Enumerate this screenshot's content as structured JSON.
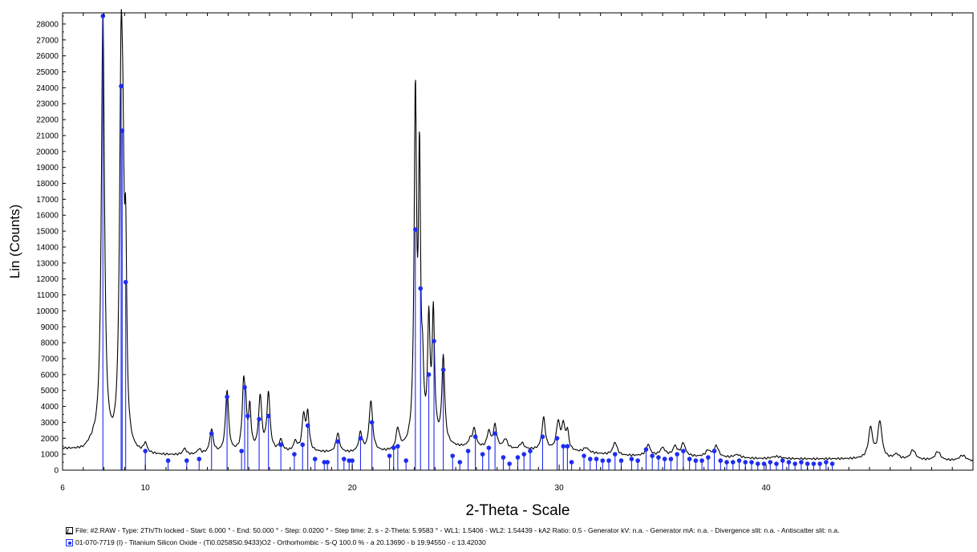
{
  "chart_data": {
    "type": "line",
    "xlabel": "2-Theta - Scale",
    "ylabel": "Lin (Counts)",
    "xlim": [
      6,
      50
    ],
    "ylim": [
      0,
      28700
    ],
    "x_ticks": [
      6,
      10,
      20,
      30,
      40
    ],
    "y_ticks": [
      0,
      1000,
      2000,
      3000,
      4000,
      5000,
      6000,
      7000,
      8000,
      9000,
      10000,
      11000,
      12000,
      13000,
      14000,
      15000,
      16000,
      17000,
      18000,
      19000,
      20000,
      21000,
      22000,
      23000,
      24000,
      25000,
      26000,
      27000,
      28000
    ],
    "grid": false,
    "series": [
      {
        "kind": "pattern",
        "color": "#000000",
        "baseline": [
          [
            6,
            1300
          ],
          [
            7,
            1200
          ],
          [
            7.5,
            1600
          ],
          [
            8.5,
            1000
          ],
          [
            10,
            900
          ],
          [
            12,
            900
          ],
          [
            15,
            1100
          ],
          [
            18,
            1100
          ],
          [
            20,
            1050
          ],
          [
            22,
            1100
          ],
          [
            24,
            1600
          ],
          [
            25,
            1400
          ],
          [
            27,
            1300
          ],
          [
            30,
            1200
          ],
          [
            33,
            900
          ],
          [
            36,
            850
          ],
          [
            40,
            700
          ],
          [
            45,
            700
          ],
          [
            50,
            550
          ]
        ],
        "peaks": [
          [
            7.95,
            27200,
            0.09
          ],
          [
            8.83,
            22800,
            0.09
          ],
          [
            8.92,
            10000,
            0.07
          ],
          [
            9.05,
            10500,
            0.06
          ],
          [
            10.0,
            600,
            0.1
          ],
          [
            11.9,
            400,
            0.1
          ],
          [
            12.6,
            300,
            0.1
          ],
          [
            13.2,
            1500,
            0.1
          ],
          [
            13.95,
            3900,
            0.09
          ],
          [
            14.75,
            4000,
            0.08
          ],
          [
            14.85,
            2000,
            0.06
          ],
          [
            15.05,
            2600,
            0.07
          ],
          [
            15.55,
            3400,
            0.09
          ],
          [
            15.95,
            3600,
            0.09
          ],
          [
            16.55,
            700,
            0.1
          ],
          [
            17.25,
            600,
            0.1
          ],
          [
            17.65,
            2200,
            0.09
          ],
          [
            17.85,
            2300,
            0.08
          ],
          [
            19.3,
            1200,
            0.1
          ],
          [
            20.4,
            1200,
            0.1
          ],
          [
            20.9,
            3200,
            0.1
          ],
          [
            22.2,
            1300,
            0.1
          ],
          [
            23.05,
            21700,
            0.07
          ],
          [
            23.25,
            17000,
            0.06
          ],
          [
            23.4,
            3500,
            0.06
          ],
          [
            23.7,
            7300,
            0.07
          ],
          [
            23.92,
            7800,
            0.07
          ],
          [
            24.4,
            5400,
            0.08
          ],
          [
            25.7,
            400,
            0.12
          ],
          [
            25.9,
            1100,
            0.1
          ],
          [
            26.6,
            1000,
            0.1
          ],
          [
            26.9,
            1400,
            0.1
          ],
          [
            27.4,
            600,
            0.12
          ],
          [
            28.2,
            400,
            0.12
          ],
          [
            29.25,
            2000,
            0.1
          ],
          [
            29.95,
            1700,
            0.1
          ],
          [
            30.2,
            1500,
            0.1
          ],
          [
            30.4,
            1100,
            0.08
          ],
          [
            31.3,
            300,
            0.15
          ],
          [
            32.7,
            800,
            0.12
          ],
          [
            34.3,
            700,
            0.12
          ],
          [
            35.0,
            500,
            0.15
          ],
          [
            35.6,
            600,
            0.12
          ],
          [
            36.0,
            800,
            0.12
          ],
          [
            37.2,
            400,
            0.15
          ],
          [
            37.6,
            700,
            0.12
          ],
          [
            38.6,
            200,
            0.2
          ],
          [
            40.5,
            150,
            0.3
          ],
          [
            45.05,
            1900,
            0.12
          ],
          [
            45.5,
            2300,
            0.12
          ],
          [
            46.3,
            300,
            0.15
          ],
          [
            47.1,
            600,
            0.15
          ],
          [
            48.3,
            550,
            0.15
          ],
          [
            49.5,
            350,
            0.2
          ]
        ]
      },
      {
        "kind": "sticks",
        "color": "#1e2cf0",
        "points": [
          [
            7.95,
            28500
          ],
          [
            8.83,
            24100
          ],
          [
            8.88,
            21300
          ],
          [
            9.05,
            11800
          ],
          [
            10.0,
            1200
          ],
          [
            11.1,
            600
          ],
          [
            12.0,
            600
          ],
          [
            12.6,
            700
          ],
          [
            13.2,
            2300
          ],
          [
            13.95,
            4600
          ],
          [
            14.65,
            1200
          ],
          [
            14.8,
            5200
          ],
          [
            14.95,
            3400
          ],
          [
            15.5,
            3200
          ],
          [
            15.95,
            3400
          ],
          [
            16.55,
            1600
          ],
          [
            17.2,
            1000
          ],
          [
            17.6,
            1600
          ],
          [
            17.85,
            2800
          ],
          [
            18.2,
            700
          ],
          [
            18.65,
            500
          ],
          [
            18.8,
            500
          ],
          [
            19.3,
            1800
          ],
          [
            19.6,
            700
          ],
          [
            19.85,
            600
          ],
          [
            20.0,
            600
          ],
          [
            20.4,
            2000
          ],
          [
            20.95,
            3000
          ],
          [
            21.8,
            900
          ],
          [
            22.0,
            1400
          ],
          [
            22.2,
            1500
          ],
          [
            22.6,
            600
          ],
          [
            23.05,
            15100
          ],
          [
            23.3,
            11400
          ],
          [
            23.7,
            6000
          ],
          [
            23.95,
            8100
          ],
          [
            24.4,
            6300
          ],
          [
            24.85,
            900
          ],
          [
            25.2,
            500
          ],
          [
            25.6,
            1200
          ],
          [
            25.95,
            2100
          ],
          [
            26.3,
            1000
          ],
          [
            26.6,
            1400
          ],
          [
            26.9,
            2300
          ],
          [
            27.3,
            800
          ],
          [
            27.6,
            400
          ],
          [
            28.0,
            800
          ],
          [
            28.3,
            1000
          ],
          [
            28.6,
            1200
          ],
          [
            29.2,
            2100
          ],
          [
            29.9,
            2000
          ],
          [
            30.2,
            1500
          ],
          [
            30.4,
            1500
          ],
          [
            30.6,
            500
          ],
          [
            31.2,
            900
          ],
          [
            31.5,
            700
          ],
          [
            31.8,
            700
          ],
          [
            32.1,
            600
          ],
          [
            32.4,
            600
          ],
          [
            32.7,
            1000
          ],
          [
            33.0,
            600
          ],
          [
            33.5,
            700
          ],
          [
            33.8,
            600
          ],
          [
            34.2,
            1300
          ],
          [
            34.5,
            900
          ],
          [
            34.8,
            800
          ],
          [
            35.1,
            700
          ],
          [
            35.4,
            700
          ],
          [
            35.7,
            1000
          ],
          [
            36.0,
            1200
          ],
          [
            36.3,
            700
          ],
          [
            36.6,
            600
          ],
          [
            36.9,
            600
          ],
          [
            37.2,
            800
          ],
          [
            37.5,
            1200
          ],
          [
            37.8,
            600
          ],
          [
            38.1,
            500
          ],
          [
            38.4,
            500
          ],
          [
            38.7,
            600
          ],
          [
            39.0,
            500
          ],
          [
            39.3,
            500
          ],
          [
            39.6,
            400
          ],
          [
            39.9,
            400
          ],
          [
            40.2,
            500
          ],
          [
            40.5,
            400
          ],
          [
            40.8,
            600
          ],
          [
            41.1,
            500
          ],
          [
            41.4,
            400
          ],
          [
            41.7,
            500
          ],
          [
            42.0,
            400
          ],
          [
            42.3,
            400
          ],
          [
            42.6,
            400
          ],
          [
            42.9,
            500
          ],
          [
            43.2,
            400
          ]
        ]
      }
    ],
    "legend": [
      "File: #2.RAW - Type: 2Th/Th locked - Start: 6.000 ° - End: 50.000 ° - Step: 0.0200 ° - Step time: 2. s - 2-Theta: 5.9583 ° - WL1: 1.5406 - WL2: 1.54439 - kA2 Ratio: 0.5 - Generator kV: n.a. - Generator mA: n.a. - Divergence slit: n.a. - Antiscatter slit: n.a.",
      "01-070-7719 (I) - Titanium Silicon Oxide - (Ti0.0258Si0.9433)O2 - Orthorhombic - S-Q 100.0 % - a 20.13690 - b 19.94550 - c 13.42030"
    ]
  }
}
